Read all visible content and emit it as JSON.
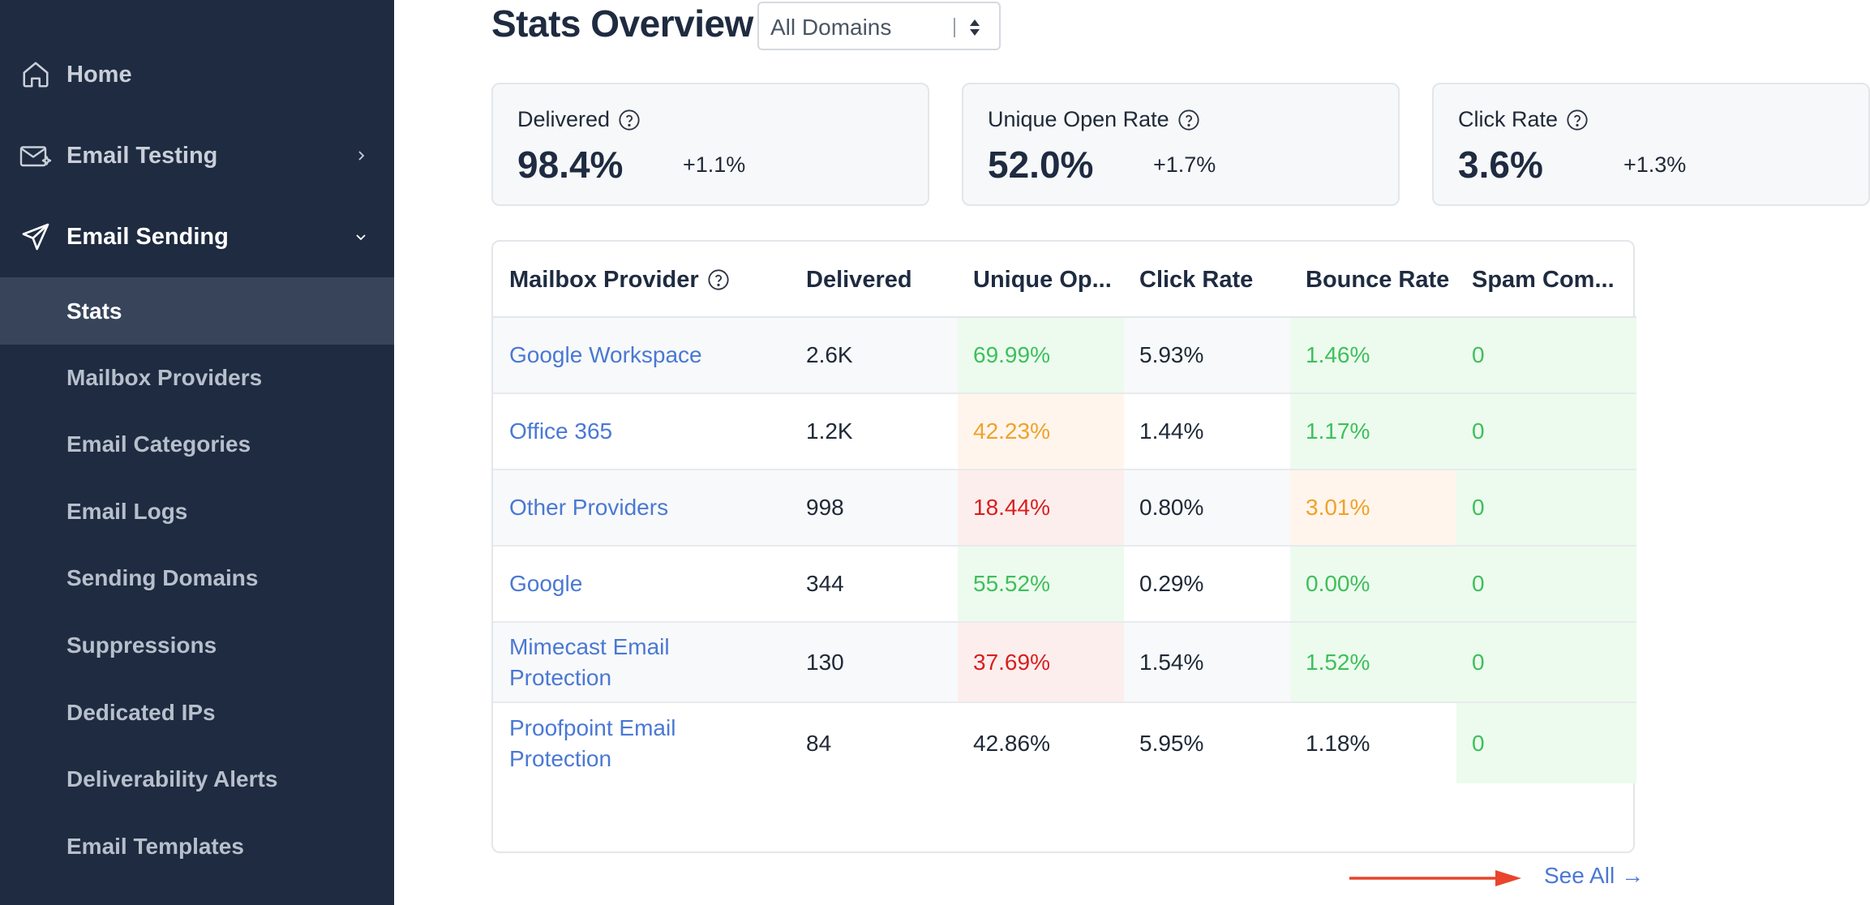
{
  "sidebar": {
    "home": "Home",
    "email_testing": "Email Testing",
    "email_sending": "Email Sending",
    "sub_items": [
      {
        "label": "Stats",
        "active": true
      },
      {
        "label": "Mailbox Providers"
      },
      {
        "label": "Email Categories"
      },
      {
        "label": "Email Logs"
      },
      {
        "label": "Sending Domains"
      },
      {
        "label": "Suppressions"
      },
      {
        "label": "Dedicated IPs"
      },
      {
        "label": "Deliverability Alerts"
      },
      {
        "label": "Email Templates"
      }
    ]
  },
  "header": {
    "title": "Stats Overview",
    "domain_select": "All Domains"
  },
  "stats": [
    {
      "label": "Delivered",
      "value": "98.4%",
      "delta": "+1.1%"
    },
    {
      "label": "Unique Open Rate",
      "value": "52.0%",
      "delta": "+1.7%"
    },
    {
      "label": "Click Rate",
      "value": "3.6%",
      "delta": "+1.3%"
    }
  ],
  "table": {
    "columns": [
      "Mailbox Provider",
      "Delivered",
      "Unique Op...",
      "Click Rate",
      "Bounce Rate",
      "Spam Com..."
    ],
    "rows": [
      {
        "provider": "Google Workspace",
        "delivered": "2.6K",
        "open": "69.99%",
        "click": "5.93%",
        "bounce": "1.46%",
        "spam": "0"
      },
      {
        "provider": "Office 365",
        "delivered": "1.2K",
        "open": "42.23%",
        "click": "1.44%",
        "bounce": "1.17%",
        "spam": "0"
      },
      {
        "provider": "Other Providers",
        "delivered": "998",
        "open": "18.44%",
        "click": "0.80%",
        "bounce": "3.01%",
        "spam": "0"
      },
      {
        "provider": "Google",
        "delivered": "344",
        "open": "55.52%",
        "click": "0.29%",
        "bounce": "0.00%",
        "spam": "0"
      },
      {
        "provider": "Mimecast Email Protection",
        "delivered": "130",
        "open": "37.69%",
        "click": "1.54%",
        "bounce": "1.52%",
        "spam": "0"
      },
      {
        "provider": "Proofpoint Email Protection",
        "delivered": "84",
        "open": "42.86%",
        "click": "5.95%",
        "bounce": "1.18%",
        "spam": "0"
      }
    ]
  },
  "footer": {
    "see_all": "See All",
    "arrow_glyph": "→"
  },
  "colors": {
    "sidebar_bg": "#1e2b40",
    "sidebar_active": "#37445a",
    "link": "#4a78d4",
    "good": "#3fbf5b",
    "warn": "#efa22a",
    "bad": "#d81f1f",
    "annotation_arrow": "#e8452c"
  }
}
